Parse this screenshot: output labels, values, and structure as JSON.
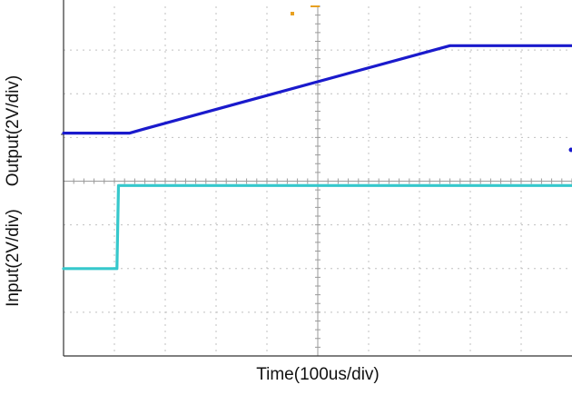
{
  "chart_data": {
    "type": "line",
    "xlabel": "Time(100us/div)",
    "ylabels": [
      "Output(2V/div)",
      "Input(2V/div)"
    ],
    "x_unit_per_div": "100us",
    "y_unit_per_div": "2V",
    "x_divisions": 10,
    "y_divisions": 8,
    "xlim": [
      0,
      10
    ],
    "ylim": [
      0,
      8
    ],
    "grid": true,
    "series": [
      {
        "name": "",
        "color": "#1a1acc",
        "points": [
          [
            0,
            5.1
          ],
          [
            1.3,
            5.1
          ],
          [
            1.6,
            5.2
          ],
          [
            7.6,
            7.1
          ],
          [
            10,
            7.1
          ]
        ]
      },
      {
        "name": "",
        "color": "#36c8cc",
        "points": [
          [
            0,
            2.0
          ],
          [
            1.05,
            2.0
          ],
          [
            1.08,
            3.9
          ],
          [
            10,
            3.9
          ]
        ]
      }
    ]
  }
}
